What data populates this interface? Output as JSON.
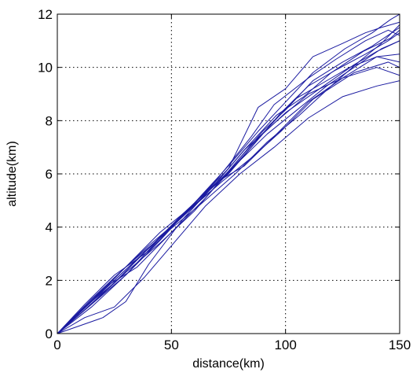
{
  "chart_data": {
    "type": "line",
    "title": "",
    "xlabel": "distance(km)",
    "ylabel": "altitude(km)",
    "xlim": [
      0,
      150
    ],
    "ylim": [
      0,
      12
    ],
    "xticks": [
      0,
      50,
      100,
      150
    ],
    "yticks": [
      0,
      2,
      4,
      6,
      8,
      10,
      12
    ],
    "grid": true,
    "grid_style": "dotted",
    "line_color": "#1a1aa0",
    "series": [
      {
        "x": [
          0,
          12,
          25,
          40,
          58,
          75,
          88,
          100,
          112,
          125,
          135,
          142,
          150
        ],
        "y": [
          0,
          1.1,
          2.2,
          3.1,
          4.7,
          6.2,
          8.5,
          9.2,
          10.4,
          10.9,
          11.3,
          11.5,
          11.7
        ]
      },
      {
        "x": [
          0,
          12,
          25,
          40,
          55,
          70,
          85,
          95,
          110,
          122,
          135,
          145,
          150
        ],
        "y": [
          0,
          1.0,
          1.9,
          3.2,
          4.4,
          5.8,
          7.4,
          8.6,
          9.6,
          10.3,
          11.0,
          11.4,
          11.2
        ]
      },
      {
        "x": [
          0,
          15,
          30,
          45,
          60,
          75,
          90,
          100,
          112,
          125,
          138,
          150
        ],
        "y": [
          0,
          1.2,
          2.5,
          3.6,
          4.8,
          6.1,
          7.6,
          8.4,
          9.5,
          10.2,
          10.8,
          11.5
        ]
      },
      {
        "x": [
          0,
          15,
          30,
          45,
          60,
          75,
          90,
          100,
          115,
          130,
          140,
          150
        ],
        "y": [
          0,
          1.1,
          2.2,
          3.5,
          4.9,
          6.0,
          7.5,
          8.3,
          9.2,
          10.1,
          10.6,
          11.0
        ]
      },
      {
        "x": [
          0,
          12,
          26,
          40,
          55,
          70,
          82,
          95,
          110,
          125,
          140,
          150
        ],
        "y": [
          0,
          0.9,
          2.0,
          3.2,
          4.5,
          5.7,
          6.9,
          7.9,
          9.0,
          9.6,
          10.4,
          10.5
        ]
      },
      {
        "x": [
          0,
          15,
          30,
          45,
          60,
          72,
          85,
          98,
          112,
          130,
          145,
          150
        ],
        "y": [
          0,
          1.0,
          2.2,
          3.6,
          4.8,
          5.7,
          6.6,
          7.6,
          8.8,
          9.8,
          10.2,
          10.0
        ]
      },
      {
        "x": [
          0,
          10,
          20,
          30,
          40,
          55,
          70,
          82,
          95,
          110,
          125,
          140,
          150
        ],
        "y": [
          0,
          0.3,
          0.6,
          1.2,
          2.6,
          4.3,
          5.7,
          6.3,
          7.4,
          8.7,
          9.6,
          10.0,
          9.7
        ]
      },
      {
        "x": [
          0,
          12,
          25,
          38,
          50,
          65,
          80,
          95,
          110,
          125,
          140,
          150
        ],
        "y": [
          0,
          0.6,
          1.0,
          2.1,
          3.3,
          4.8,
          6.0,
          7.0,
          8.1,
          8.9,
          9.3,
          9.5
        ]
      },
      {
        "x": [
          0,
          15,
          30,
          45,
          55,
          68,
          80,
          92,
          105,
          118,
          130,
          142,
          150
        ],
        "y": [
          0,
          1.3,
          2.5,
          3.8,
          4.5,
          5.4,
          6.5,
          7.5,
          8.4,
          9.3,
          10.0,
          10.7,
          11.0
        ]
      },
      {
        "x": [
          0,
          15,
          30,
          45,
          60,
          72,
          85,
          98,
          110,
          122,
          135,
          145,
          150
        ],
        "y": [
          0,
          1.1,
          2.3,
          3.4,
          4.6,
          5.8,
          7.0,
          8.3,
          9.3,
          9.9,
          10.5,
          11.0,
          11.3
        ]
      },
      {
        "x": [
          0,
          12,
          22,
          35,
          50,
          65,
          80,
          92,
          104,
          116,
          128,
          140,
          150
        ],
        "y": [
          0,
          1.0,
          1.8,
          2.5,
          3.8,
          5.1,
          6.6,
          7.7,
          8.8,
          9.4,
          10.0,
          10.4,
          10.2
        ]
      },
      {
        "x": [
          0,
          15,
          30,
          45,
          60,
          75,
          88,
          100,
          112,
          126,
          138,
          146,
          150
        ],
        "y": [
          0,
          1.2,
          2.4,
          3.6,
          4.9,
          6.3,
          7.6,
          8.7,
          9.8,
          10.7,
          11.3,
          11.8,
          12.0
        ]
      },
      {
        "x": [
          0,
          15,
          30,
          45,
          62,
          78,
          92,
          106,
          120,
          132,
          142,
          150
        ],
        "y": [
          0,
          1.2,
          2.4,
          3.6,
          4.8,
          6.0,
          7.2,
          8.2,
          9.3,
          10.2,
          10.9,
          11.6
        ]
      },
      {
        "x": [
          0,
          12,
          25,
          40,
          55,
          68,
          82,
          96,
          108,
          120,
          134,
          146,
          150
        ],
        "y": [
          0,
          1.0,
          2.1,
          3.3,
          4.4,
          5.5,
          6.9,
          8.2,
          8.9,
          9.8,
          10.6,
          11.1,
          11.4
        ]
      }
    ]
  }
}
